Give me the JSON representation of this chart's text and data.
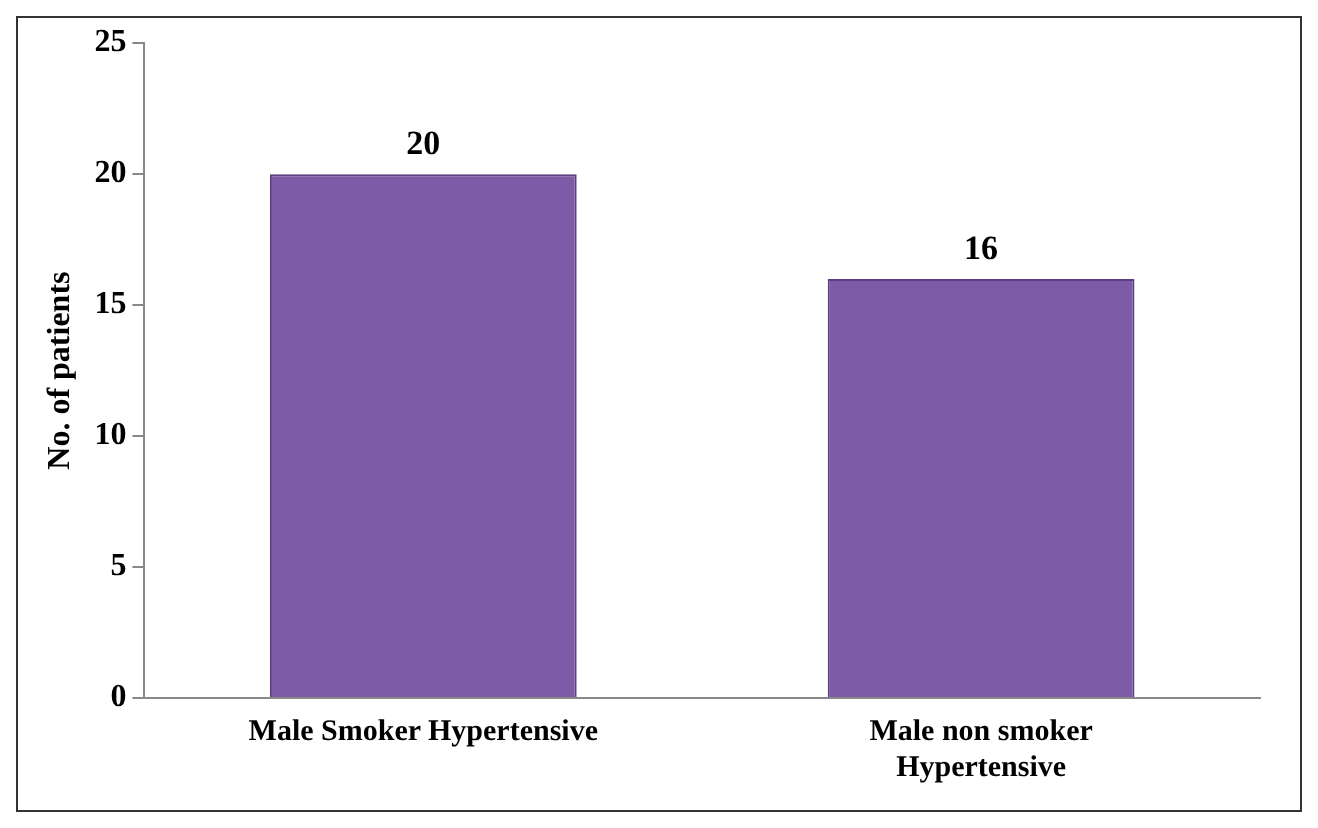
{
  "chart_data": {
    "type": "bar",
    "ylabel": "No. of patients",
    "categories": [
      "Male Smoker Hypertensive",
      "Male non smoker Hypertensive"
    ],
    "values": [
      20,
      16
    ],
    "color": "#7d5ba6",
    "ylim": [
      0,
      25
    ],
    "yticks": [
      0,
      5,
      10,
      15,
      20,
      25
    ],
    "grid": false,
    "legend": false,
    "data_labels": true
  }
}
